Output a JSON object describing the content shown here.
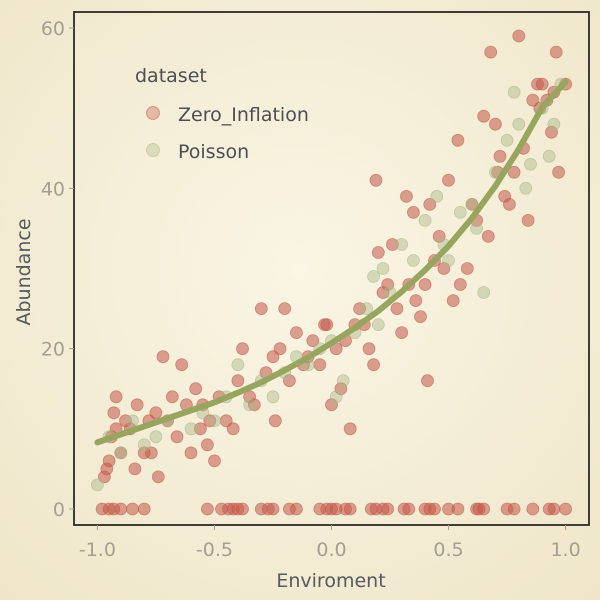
{
  "chart_data": {
    "type": "scatter",
    "xlabel": "Enviroment",
    "ylabel": "Abundance",
    "xlim": [
      -1.1,
      1.1
    ],
    "ylim": [
      -2,
      62
    ],
    "x_ticks": [
      -1.0,
      -0.5,
      0.0,
      0.5,
      1.0
    ],
    "x_tick_labels": [
      "-1.0",
      "-0.5",
      "0.0",
      "0.5",
      "1.0"
    ],
    "y_ticks": [
      0,
      20,
      40,
      60
    ],
    "y_tick_labels": [
      "0",
      "20",
      "40",
      "60"
    ],
    "grid": false,
    "legend": {
      "title": "dataset",
      "placement": "top-left",
      "entries": [
        "Zero_Inflation",
        "Poisson"
      ]
    },
    "series": [
      {
        "name": "Zero_Inflation",
        "color": "#c2584a",
        "points": [
          [
            -0.98,
            0
          ],
          [
            -0.95,
            0
          ],
          [
            -0.93,
            0
          ],
          [
            -0.9,
            0
          ],
          [
            -0.85,
            0
          ],
          [
            -0.8,
            0
          ],
          [
            -0.53,
            0
          ],
          [
            -0.47,
            0
          ],
          [
            -0.44,
            0
          ],
          [
            -0.42,
            0
          ],
          [
            -0.4,
            0
          ],
          [
            -0.38,
            0
          ],
          [
            -0.3,
            0
          ],
          [
            -0.27,
            0
          ],
          [
            -0.25,
            0
          ],
          [
            -0.18,
            0
          ],
          [
            -0.15,
            0
          ],
          [
            -0.05,
            0
          ],
          [
            -0.02,
            0
          ],
          [
            0.0,
            0
          ],
          [
            0.02,
            0
          ],
          [
            0.06,
            0
          ],
          [
            0.08,
            0
          ],
          [
            0.17,
            0
          ],
          [
            0.19,
            0
          ],
          [
            0.22,
            0
          ],
          [
            0.24,
            0
          ],
          [
            0.31,
            0
          ],
          [
            0.33,
            0
          ],
          [
            0.4,
            0
          ],
          [
            0.42,
            0
          ],
          [
            0.44,
            0
          ],
          [
            0.5,
            0
          ],
          [
            0.54,
            0
          ],
          [
            0.62,
            0
          ],
          [
            0.63,
            0
          ],
          [
            0.65,
            0
          ],
          [
            0.75,
            0
          ],
          [
            0.78,
            0
          ],
          [
            0.86,
            0
          ],
          [
            0.93,
            0
          ],
          [
            0.95,
            0
          ],
          [
            1.0,
            0
          ],
          [
            -0.97,
            4
          ],
          [
            -0.96,
            5
          ],
          [
            -0.95,
            6
          ],
          [
            -0.94,
            9
          ],
          [
            -0.93,
            12
          ],
          [
            -0.92,
            14
          ],
          [
            -0.92,
            10
          ],
          [
            -0.9,
            7
          ],
          [
            -0.88,
            11
          ],
          [
            -0.86,
            10
          ],
          [
            -0.84,
            5
          ],
          [
            -0.83,
            13
          ],
          [
            -0.8,
            7
          ],
          [
            -0.78,
            11
          ],
          [
            -0.77,
            7
          ],
          [
            -0.75,
            12
          ],
          [
            -0.74,
            4
          ],
          [
            -0.72,
            19
          ],
          [
            -0.7,
            11
          ],
          [
            -0.68,
            14
          ],
          [
            -0.66,
            9
          ],
          [
            -0.64,
            18
          ],
          [
            -0.62,
            13
          ],
          [
            -0.6,
            7
          ],
          [
            -0.58,
            15
          ],
          [
            -0.56,
            10
          ],
          [
            -0.55,
            13
          ],
          [
            -0.53,
            8
          ],
          [
            -0.52,
            11
          ],
          [
            -0.5,
            6
          ],
          [
            -0.48,
            14
          ],
          [
            -0.45,
            11
          ],
          [
            -0.42,
            10
          ],
          [
            -0.4,
            16
          ],
          [
            -0.38,
            20
          ],
          [
            -0.35,
            14
          ],
          [
            -0.33,
            13
          ],
          [
            -0.3,
            25
          ],
          [
            -0.28,
            17
          ],
          [
            -0.25,
            19
          ],
          [
            -0.24,
            11
          ],
          [
            -0.22,
            20
          ],
          [
            -0.2,
            25
          ],
          [
            -0.18,
            16
          ],
          [
            -0.15,
            22
          ],
          [
            -0.12,
            18
          ],
          [
            -0.1,
            19
          ],
          [
            -0.08,
            21
          ],
          [
            -0.05,
            18
          ],
          [
            -0.03,
            23
          ],
          [
            -0.02,
            23
          ],
          [
            0.0,
            13
          ],
          [
            0.02,
            20
          ],
          [
            0.04,
            15
          ],
          [
            0.06,
            21
          ],
          [
            0.08,
            10
          ],
          [
            0.1,
            23
          ],
          [
            0.12,
            25
          ],
          [
            0.14,
            23
          ],
          [
            0.16,
            20
          ],
          [
            0.18,
            18
          ],
          [
            0.19,
            41
          ],
          [
            0.2,
            32
          ],
          [
            0.22,
            27
          ],
          [
            0.24,
            28
          ],
          [
            0.26,
            33
          ],
          [
            0.28,
            25
          ],
          [
            0.3,
            22
          ],
          [
            0.32,
            39
          ],
          [
            0.33,
            28
          ],
          [
            0.35,
            37
          ],
          [
            0.36,
            26
          ],
          [
            0.38,
            24
          ],
          [
            0.4,
            28
          ],
          [
            0.41,
            16
          ],
          [
            0.42,
            38
          ],
          [
            0.44,
            31
          ],
          [
            0.46,
            34
          ],
          [
            0.48,
            30
          ],
          [
            0.5,
            41
          ],
          [
            0.52,
            26
          ],
          [
            0.54,
            46
          ],
          [
            0.55,
            28
          ],
          [
            0.58,
            30
          ],
          [
            0.6,
            38
          ],
          [
            0.62,
            36
          ],
          [
            0.65,
            49
          ],
          [
            0.67,
            34
          ],
          [
            0.68,
            57
          ],
          [
            0.7,
            48
          ],
          [
            0.71,
            42
          ],
          [
            0.72,
            44
          ],
          [
            0.74,
            39
          ],
          [
            0.76,
            38
          ],
          [
            0.78,
            42
          ],
          [
            0.8,
            59
          ],
          [
            0.82,
            45
          ],
          [
            0.84,
            36
          ],
          [
            0.86,
            51
          ],
          [
            0.88,
            53
          ],
          [
            0.89,
            50
          ],
          [
            0.9,
            53
          ],
          [
            0.92,
            51
          ],
          [
            0.94,
            47
          ],
          [
            0.95,
            52
          ],
          [
            0.96,
            57
          ],
          [
            0.97,
            42
          ],
          [
            1.0,
            53
          ]
        ]
      },
      {
        "name": "Poisson",
        "color": "#aab889",
        "points": [
          [
            -1.0,
            3
          ],
          [
            -0.95,
            9
          ],
          [
            -0.9,
            7
          ],
          [
            -0.85,
            11
          ],
          [
            -0.8,
            8
          ],
          [
            -0.75,
            9
          ],
          [
            -0.7,
            11
          ],
          [
            -0.6,
            10
          ],
          [
            -0.55,
            12
          ],
          [
            -0.5,
            11
          ],
          [
            -0.45,
            14
          ],
          [
            -0.4,
            18
          ],
          [
            -0.35,
            13
          ],
          [
            -0.3,
            16
          ],
          [
            -0.25,
            14
          ],
          [
            -0.2,
            17
          ],
          [
            -0.15,
            19
          ],
          [
            -0.1,
            18
          ],
          [
            -0.05,
            20
          ],
          [
            0.0,
            21
          ],
          [
            0.02,
            14
          ],
          [
            0.05,
            16
          ],
          [
            0.1,
            22
          ],
          [
            0.15,
            25
          ],
          [
            0.18,
            29
          ],
          [
            0.2,
            23
          ],
          [
            0.22,
            30
          ],
          [
            0.25,
            27
          ],
          [
            0.3,
            33
          ],
          [
            0.35,
            31
          ],
          [
            0.4,
            36
          ],
          [
            0.45,
            39
          ],
          [
            0.48,
            33
          ],
          [
            0.5,
            31
          ],
          [
            0.55,
            37
          ],
          [
            0.6,
            38
          ],
          [
            0.62,
            35
          ],
          [
            0.65,
            27
          ],
          [
            0.7,
            42
          ],
          [
            0.75,
            46
          ],
          [
            0.78,
            52
          ],
          [
            0.8,
            48
          ],
          [
            0.83,
            40
          ],
          [
            0.85,
            43
          ],
          [
            0.9,
            50
          ],
          [
            0.93,
            44
          ],
          [
            0.95,
            48
          ],
          [
            0.98,
            53
          ]
        ]
      }
    ],
    "trend": {
      "color": "#98a55e",
      "points": [
        [
          -1.0,
          8.3
        ],
        [
          -0.9,
          9.3
        ],
        [
          -0.8,
          10.3
        ],
        [
          -0.7,
          11.3
        ],
        [
          -0.6,
          12.3
        ],
        [
          -0.5,
          13.3
        ],
        [
          -0.4,
          14.5
        ],
        [
          -0.3,
          15.8
        ],
        [
          -0.2,
          17.3
        ],
        [
          -0.1,
          18.9
        ],
        [
          0.0,
          20.7
        ],
        [
          0.1,
          22.6
        ],
        [
          0.2,
          24.7
        ],
        [
          0.3,
          27.1
        ],
        [
          0.4,
          29.8
        ],
        [
          0.5,
          32.8
        ],
        [
          0.6,
          36.3
        ],
        [
          0.7,
          40.3
        ],
        [
          0.8,
          44.9
        ],
        [
          0.9,
          50.1
        ],
        [
          1.0,
          53.3
        ]
      ]
    }
  }
}
